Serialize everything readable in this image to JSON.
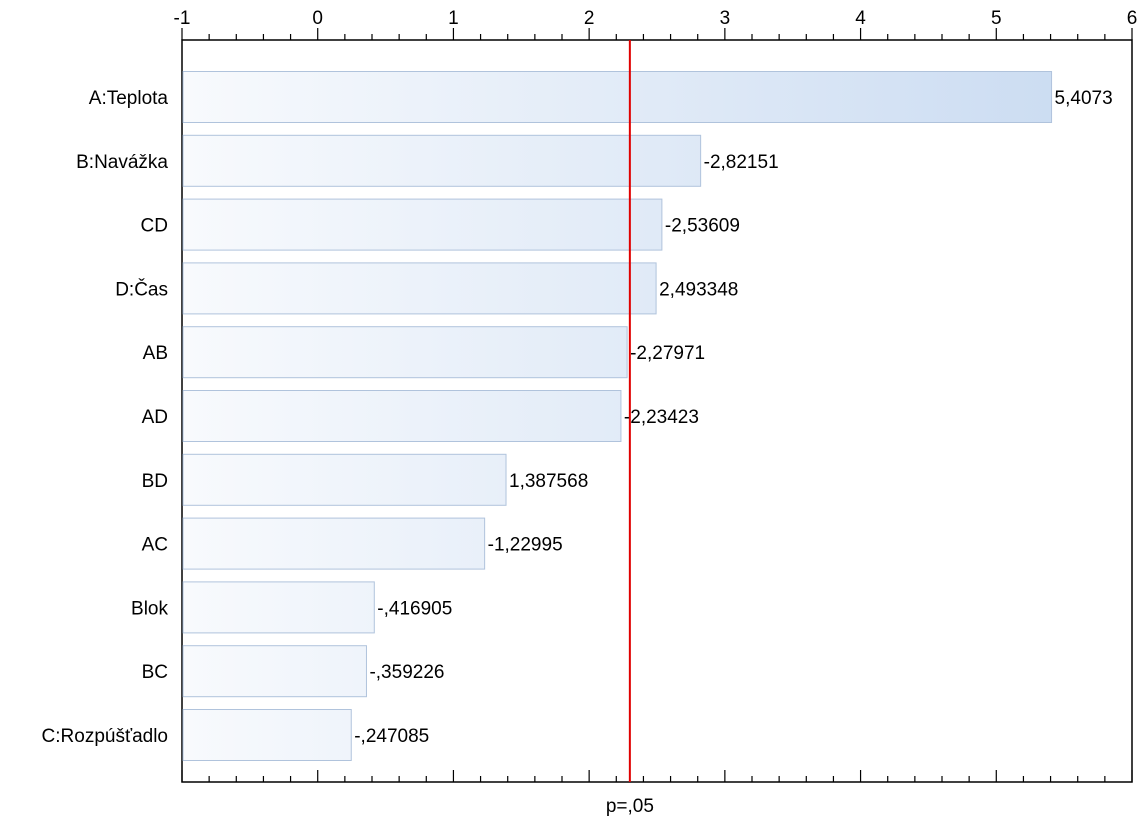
{
  "chart_data": {
    "type": "bar",
    "orientation": "horizontal",
    "categories": [
      "A:Teplota",
      "B:Navážka",
      "CD",
      "D:Čas",
      "AB",
      "AD",
      "BD",
      "AC",
      "Blok",
      "BC",
      "C:Rozpúšťadlo"
    ],
    "values": [
      5.4073,
      2.82151,
      2.53609,
      2.493348,
      2.27971,
      2.23423,
      1.387568,
      1.22995,
      0.416905,
      0.359226,
      0.247085
    ],
    "value_labels": [
      "5,4073",
      "-2,82151",
      "-2,53609",
      "2,493348",
      "-2,27971",
      "-2,23423",
      "1,387568",
      "-1,22995",
      "-,416905",
      "-,359226",
      "-,247085"
    ],
    "x_ticks": [
      -1,
      0,
      1,
      2,
      3,
      4,
      5,
      6
    ],
    "x_tick_labels": [
      "-1",
      "0",
      "1",
      "2",
      "3",
      "4",
      "5",
      "6"
    ],
    "xlim": [
      -1,
      6
    ],
    "xaxis_position": "top",
    "reference_line": {
      "value": 2.3,
      "label": "p=,05",
      "color": "#e00000"
    },
    "bar_fill_start": "#f8fafd",
    "bar_fill_end": "#c8daf1",
    "bar_stroke": "#b0c3dc",
    "grid": false,
    "legend": "none"
  }
}
